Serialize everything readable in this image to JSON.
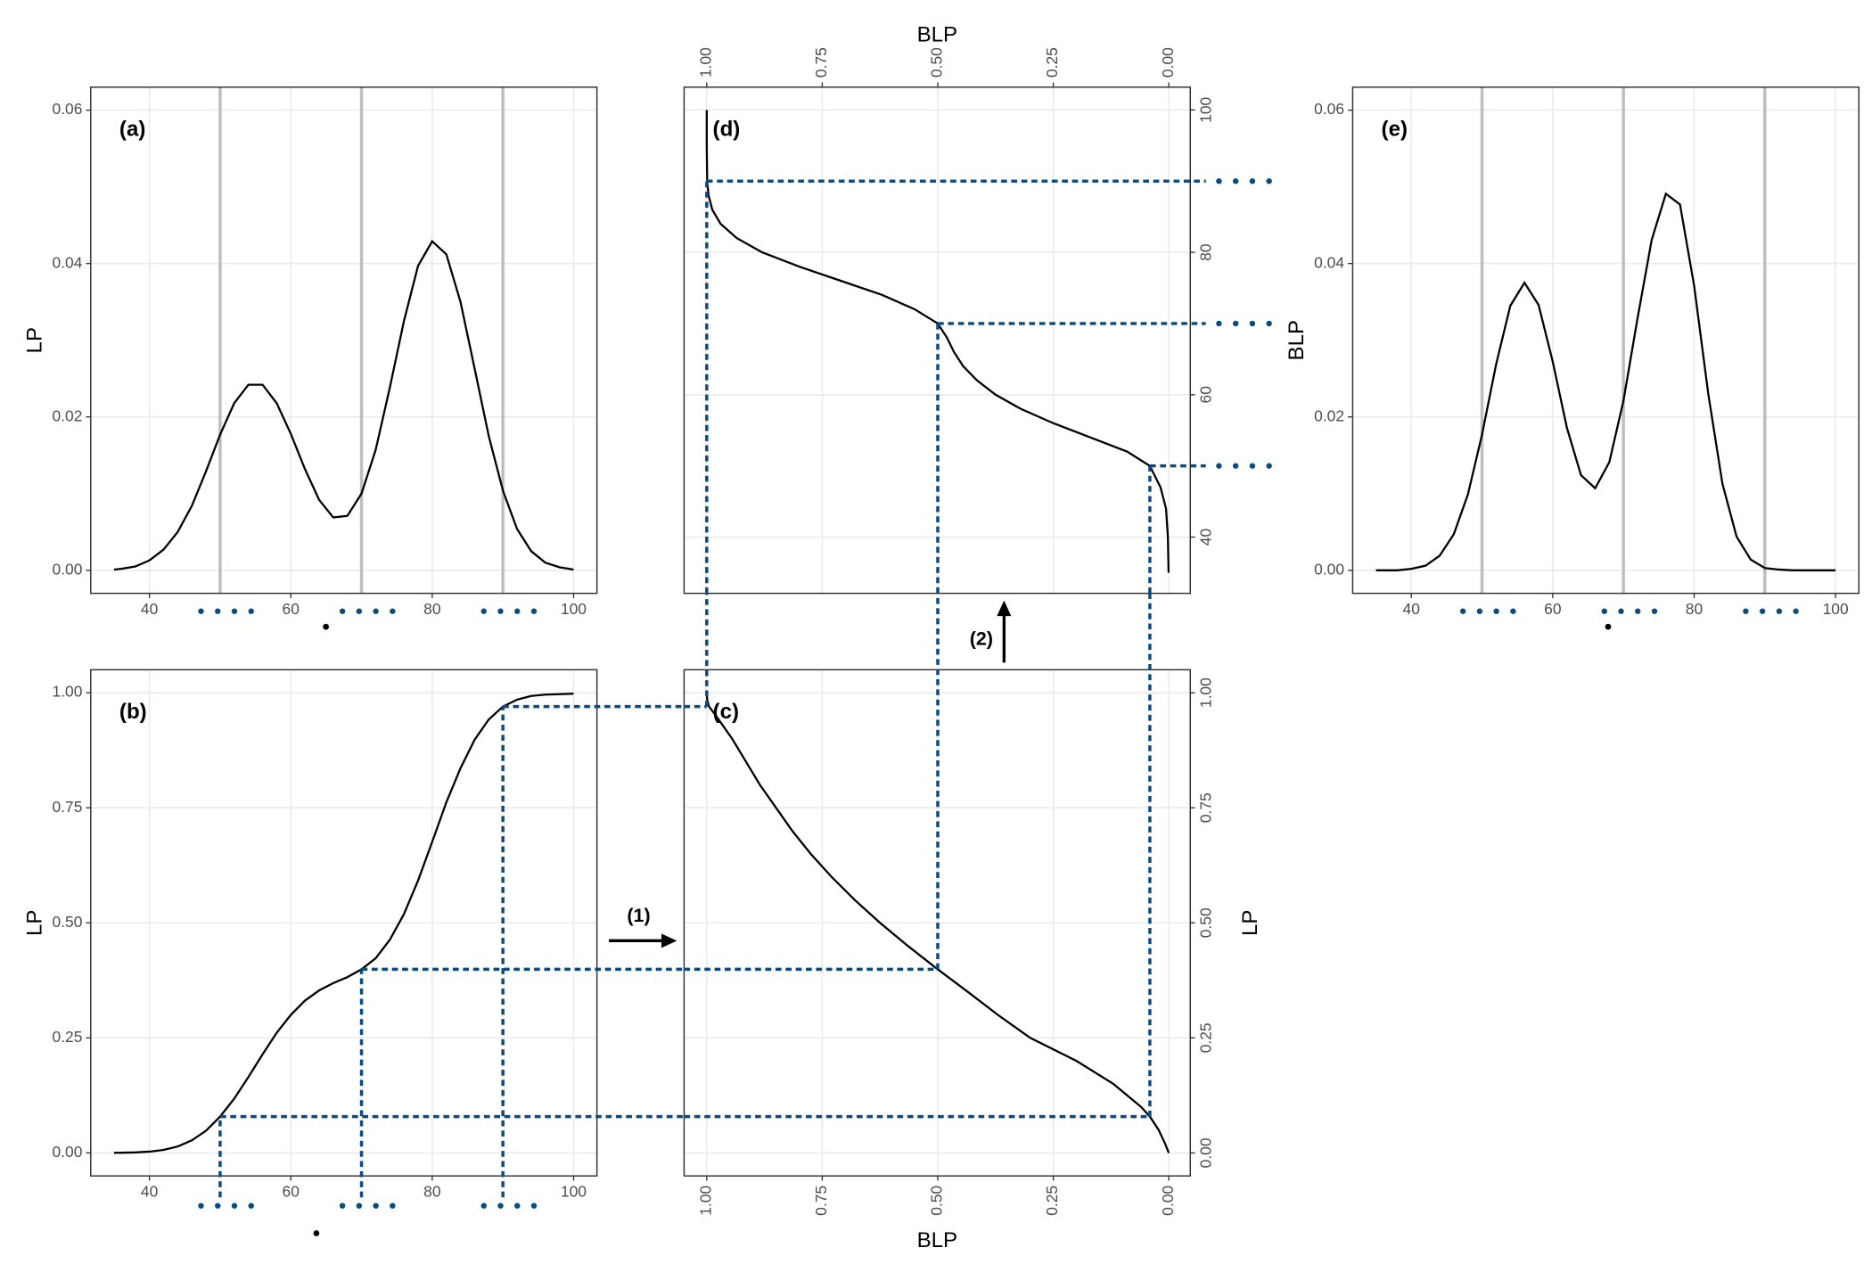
{
  "chart_data": [
    {
      "type": "line",
      "panel_label": "(a)",
      "ylabel": "LP",
      "xlim": [
        31.7,
        103.3
      ],
      "ylim": [
        -0.003,
        0.063
      ],
      "xticks": [
        40,
        60,
        80,
        100
      ],
      "yticks": [
        {
          "value": 0,
          "label": "0.00"
        },
        0.02,
        0.04,
        0.06
      ],
      "grid": true,
      "vlines": [
        50,
        70,
        90
      ],
      "color": "#000000",
      "x": [
        35,
        36,
        38,
        40,
        42,
        44,
        46,
        48,
        50,
        52,
        54,
        56,
        58,
        60,
        62,
        64,
        66,
        68,
        70,
        72,
        74,
        76,
        78,
        80,
        82,
        84,
        86,
        88,
        90,
        92,
        94,
        96,
        98,
        100
      ],
      "values": [
        0.0001,
        0.0002,
        0.0005,
        0.0013,
        0.0027,
        0.005,
        0.0084,
        0.0129,
        0.0177,
        0.0218,
        0.0242,
        0.0242,
        0.0218,
        0.0178,
        0.0132,
        0.0092,
        0.0069,
        0.0071,
        0.01,
        0.0157,
        0.0238,
        0.0325,
        0.0397,
        0.0429,
        0.0412,
        0.035,
        0.0263,
        0.0175,
        0.0104,
        0.0054,
        0.0025,
        0.001,
        0.0004,
        0.0001
      ]
    },
    {
      "type": "line",
      "panel_label": "(b)",
      "ylabel": "LP",
      "xlim": [
        31.7,
        103.3
      ],
      "ylim": [
        -0.05,
        1.05
      ],
      "xticks": [
        40,
        60,
        80,
        100
      ],
      "yticks": [
        {
          "value": 0,
          "label": "0.00"
        },
        0.25,
        {
          "value": 0.5,
          "label": "0.50"
        },
        0.75,
        {
          "value": 1,
          "label": "1.00"
        }
      ],
      "grid": true,
      "color": "#000000",
      "x": [
        35,
        36,
        38,
        40,
        42,
        44,
        46,
        48,
        50,
        52,
        54,
        56,
        58,
        60,
        62,
        64,
        66,
        68,
        70,
        72,
        74,
        76,
        78,
        80,
        82,
        84,
        86,
        88,
        90,
        92,
        94,
        96,
        98,
        100
      ],
      "values": [
        0.0002,
        0.0004,
        0.0011,
        0.0028,
        0.0066,
        0.0139,
        0.0273,
        0.0482,
        0.079,
        0.118,
        0.165,
        0.214,
        0.261,
        0.3,
        0.331,
        0.353,
        0.369,
        0.382,
        0.399,
        0.423,
        0.463,
        0.519,
        0.592,
        0.676,
        0.762,
        0.836,
        0.898,
        0.942,
        0.97,
        0.985,
        0.993,
        0.996,
        0.997,
        0.998
      ],
      "guides": {
        "color": "#0d4a80",
        "x": [
          50,
          70,
          90
        ],
        "y": [
          0.079,
          0.399,
          0.97
        ]
      }
    },
    {
      "type": "line",
      "panel_label": "(c)",
      "xlabel": "BLP",
      "ylabel": "LP",
      "xlim": [
        1.049,
        -0.0465
      ],
      "ylim": [
        -0.05,
        1.05
      ],
      "xticks": [
        {
          "value": 1,
          "label": "1.00"
        },
        0.75,
        {
          "value": 0.5,
          "label": "0.50"
        },
        0.25,
        {
          "value": 0,
          "label": "0.00"
        }
      ],
      "yticks": [
        {
          "value": 0,
          "label": "0.00"
        },
        0.25,
        {
          "value": 0.5,
          "label": "0.50"
        },
        0.75,
        {
          "value": 1,
          "label": "1.00"
        }
      ],
      "grid": true,
      "color": "#000000",
      "x": [
        0,
        0.008,
        0.022,
        0.041,
        0.06,
        0.12,
        0.2,
        0.3,
        0.37,
        0.435,
        0.5,
        0.565,
        0.625,
        0.68,
        0.73,
        0.775,
        0.815,
        0.85,
        0.885,
        0.915,
        0.945,
        0.98,
        0.995,
        0.999,
        1
      ],
      "values": [
        0,
        0.02,
        0.05,
        0.079,
        0.1,
        0.15,
        0.2,
        0.25,
        0.3,
        0.35,
        0.399,
        0.45,
        0.5,
        0.55,
        0.6,
        0.65,
        0.7,
        0.75,
        0.8,
        0.85,
        0.9,
        0.95,
        0.97,
        0.985,
        1
      ],
      "guides": {
        "color": "#0d4a80",
        "x": [
          0.041,
          0.5,
          1
        ],
        "y": [
          0.079,
          0.399,
          0.97
        ]
      }
    },
    {
      "type": "line",
      "panel_label": "(d)",
      "xlabel": "BLP",
      "xlim": [
        1.049,
        -0.0465
      ],
      "ylim": [
        32.1,
        103.2
      ],
      "xticks": [
        {
          "value": 1,
          "label": "1.00"
        },
        0.75,
        {
          "value": 0.5,
          "label": "0.50"
        },
        0.25,
        {
          "value": 0,
          "label": "0.00"
        }
      ],
      "yticks": [
        40,
        60,
        80,
        100
      ],
      "grid": true,
      "color": "#000000",
      "x": [
        0.0005,
        0.002,
        0.006,
        0.018,
        0.041,
        0.09,
        0.17,
        0.25,
        0.32,
        0.375,
        0.415,
        0.445,
        0.465,
        0.48,
        0.5,
        0.55,
        0.62,
        0.71,
        0.8,
        0.88,
        0.935,
        0.97,
        0.988,
        0.996,
        0.999,
        1,
        1
      ],
      "values": [
        35,
        40,
        44,
        47,
        50,
        52,
        54,
        56,
        58,
        60,
        62,
        64,
        66,
        68,
        70,
        72,
        74,
        76,
        78,
        80,
        82,
        84,
        86,
        88,
        90,
        95,
        100
      ],
      "guides": {
        "color": "#0d4a80",
        "x": [
          0.041,
          0.5,
          1
        ],
        "y": [
          50,
          70,
          90
        ]
      }
    },
    {
      "type": "line",
      "panel_label": "(e)",
      "ylabel": "BLP",
      "xlim": [
        31.7,
        103.3
      ],
      "ylim": [
        -0.003,
        0.063
      ],
      "xticks": [
        40,
        60,
        80,
        100
      ],
      "yticks": [
        {
          "value": 0,
          "label": "0.00"
        },
        0.02,
        0.04,
        0.06
      ],
      "grid": true,
      "vlines": [
        50,
        70,
        90
      ],
      "color": "#000000",
      "x": [
        35,
        36,
        38,
        40,
        42,
        44,
        46,
        48,
        50,
        52,
        54,
        56,
        58,
        60,
        62,
        64,
        66,
        68,
        70,
        72,
        74,
        76,
        78,
        80,
        82,
        84,
        86,
        88,
        90,
        92,
        94,
        96,
        98,
        100
      ],
      "values": [
        0,
        0,
        0,
        0.0002,
        0.0006,
        0.0019,
        0.0047,
        0.0099,
        0.0177,
        0.0269,
        0.0345,
        0.0375,
        0.0346,
        0.0272,
        0.0186,
        0.0124,
        0.0107,
        0.0141,
        0.0221,
        0.0329,
        0.0431,
        0.0491,
        0.0477,
        0.0371,
        0.023,
        0.0113,
        0.0044,
        0.0014,
        0.0003,
        0.0001,
        0,
        0,
        0,
        0
      ]
    }
  ],
  "annotations": [
    "(1)",
    "(2)"
  ]
}
